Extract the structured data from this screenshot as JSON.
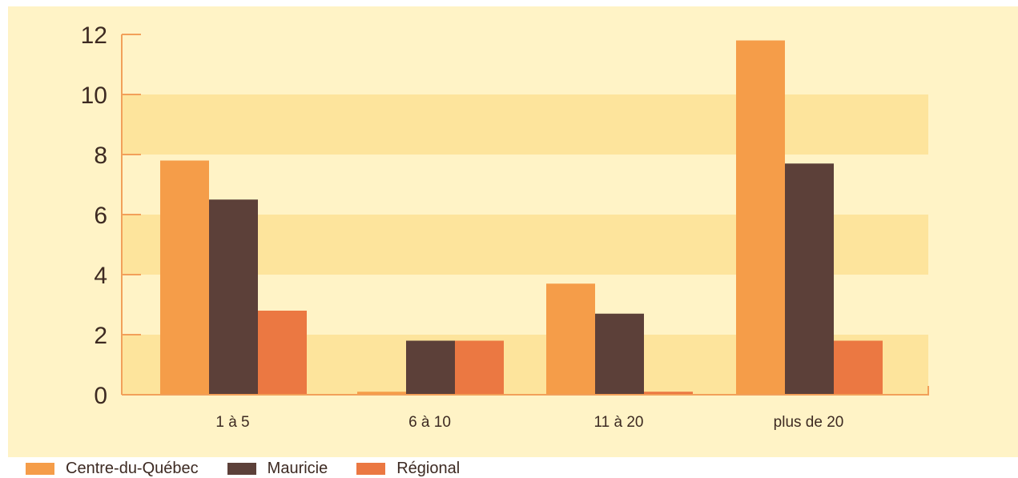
{
  "chart_data": {
    "type": "bar",
    "categories": [
      "1 à 5",
      "6 à 10",
      "11 à 20",
      "plus de 20"
    ],
    "series": [
      {
        "name": "Centre-du-Québec",
        "values": [
          7.8,
          0.1,
          3.7,
          11.8
        ],
        "color": "#f59d49"
      },
      {
        "name": "Mauricie",
        "values": [
          6.5,
          1.8,
          2.7,
          7.7
        ],
        "color": "#5c4039"
      },
      {
        "name": "Régional",
        "values": [
          2.8,
          1.8,
          0.1,
          1.8
        ],
        "color": "#eb7842"
      }
    ],
    "yticks": [
      "0",
      "2",
      "4",
      "6",
      "8",
      "10",
      "12"
    ],
    "ylim": [
      0,
      12
    ],
    "title": "",
    "xlabel": "",
    "ylabel": "",
    "legend_position": "bottom-left",
    "colors": {
      "background": "#fff3c6",
      "band": "#fde49c",
      "axis": "#f2a05a"
    }
  }
}
